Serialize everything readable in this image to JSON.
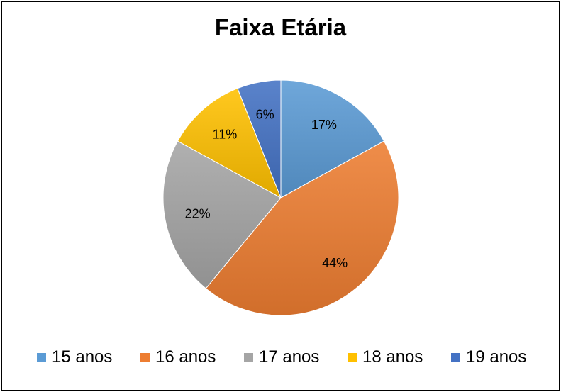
{
  "chart_data": {
    "type": "pie",
    "title": "Faixa Etária",
    "categories": [
      "15 anos",
      "16 anos",
      "17 anos",
      "18 anos",
      "19 anos"
    ],
    "values": [
      17,
      44,
      22,
      11,
      6
    ],
    "value_labels": [
      "17%",
      "44%",
      "22%",
      "11%",
      "6%"
    ],
    "colors": [
      "#5b9bd5",
      "#ed7d31",
      "#a5a5a5",
      "#ffc000",
      "#4472c4"
    ],
    "start_angle_deg": 0,
    "direction": "clockwise",
    "legend_position": "bottom"
  }
}
